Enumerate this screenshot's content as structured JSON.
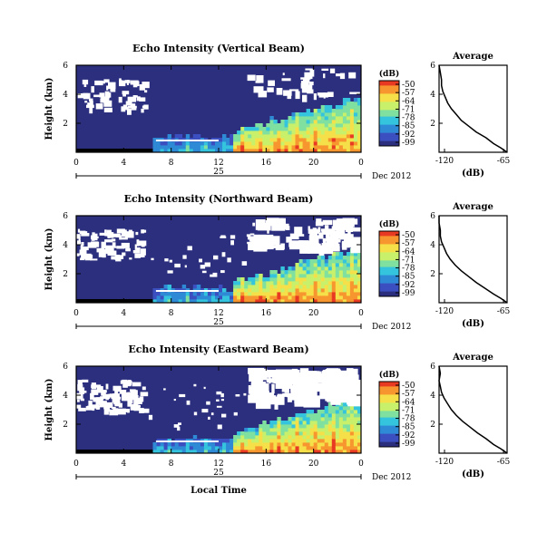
{
  "chart_data": [
    {
      "type": "heatmap",
      "title": "Echo Intensity (Vertical Beam)",
      "ylabel": "Height (km)",
      "ylim": [
        0,
        6
      ],
      "yticks": [
        "2",
        "4",
        "6"
      ],
      "xticks": [
        "0",
        "4",
        "8",
        "12",
        "16",
        "20",
        "0"
      ],
      "date_tick": "25",
      "date_label": "Dec 2012",
      "colorbar": {
        "label": "(dB)",
        "ticks": [
          "-50",
          "-57",
          "-64",
          "-71",
          "-78",
          "-85",
          "-92",
          "-99"
        ]
      },
      "average": {
        "title": "Average",
        "xlabel": "(dB)",
        "xticks": [
          "-120",
          "-65"
        ],
        "yticks": [
          "2",
          "4",
          "6"
        ],
        "x": [
          -65,
          -70,
          -76,
          -82,
          -90,
          -96,
          -102,
          -106,
          -110,
          -113,
          -115,
          -117,
          -118,
          -118,
          -119,
          -120
        ],
        "y": [
          0.0,
          0.3,
          0.6,
          1.0,
          1.4,
          1.8,
          2.2,
          2.6,
          3.0,
          3.4,
          3.8,
          4.2,
          4.6,
          5.0,
          5.5,
          6.0
        ]
      }
    },
    {
      "type": "heatmap",
      "title": "Echo Intensity (Northward Beam)",
      "ylabel": "Height (km)",
      "ylim": [
        0,
        6
      ],
      "yticks": [
        "2",
        "4",
        "6"
      ],
      "xticks": [
        "0",
        "4",
        "8",
        "12",
        "16",
        "20",
        "0"
      ],
      "date_tick": "25",
      "date_label": "Dec 2012",
      "colorbar": {
        "label": "(dB)",
        "ticks": [
          "-50",
          "-57",
          "-64",
          "-71",
          "-78",
          "-85",
          "-92",
          "-99"
        ]
      },
      "average": {
        "title": "Average",
        "xlabel": "(dB)",
        "xticks": [
          "-120",
          "-65"
        ],
        "yticks": [
          "2",
          "4",
          "6"
        ],
        "x": [
          -65,
          -70,
          -76,
          -83,
          -90,
          -96,
          -102,
          -107,
          -111,
          -114,
          -116,
          -118,
          -119,
          -119,
          -120,
          -120
        ],
        "y": [
          0.0,
          0.3,
          0.6,
          1.0,
          1.4,
          1.8,
          2.2,
          2.6,
          3.0,
          3.4,
          3.8,
          4.2,
          4.6,
          5.0,
          5.5,
          6.0
        ]
      }
    },
    {
      "type": "heatmap",
      "title": "Echo Intensity (Eastward Beam)",
      "ylabel": "Height (km)",
      "ylim": [
        0,
        6
      ],
      "yticks": [
        "2",
        "4",
        "6"
      ],
      "xticks": [
        "0",
        "4",
        "8",
        "12",
        "16",
        "20",
        "0"
      ],
      "date_tick": "25",
      "date_label": "Dec 2012",
      "xlabel": "Local Time",
      "colorbar": {
        "label": "(dB)",
        "ticks": [
          "-50",
          "-57",
          "-64",
          "-71",
          "-78",
          "-85",
          "-92",
          "-99"
        ]
      },
      "average": {
        "title": "Average",
        "xlabel": "(dB)",
        "xticks": [
          "-120",
          "-65"
        ],
        "yticks": [
          "2",
          "4",
          "6"
        ],
        "x": [
          -65,
          -70,
          -76,
          -82,
          -89,
          -95,
          -101,
          -106,
          -110,
          -113,
          -116,
          -118,
          -119,
          -120,
          -119,
          -120
        ],
        "y": [
          0.0,
          0.3,
          0.6,
          1.0,
          1.4,
          1.8,
          2.2,
          2.6,
          3.0,
          3.4,
          3.8,
          4.2,
          4.6,
          5.0,
          5.5,
          6.0
        ]
      }
    }
  ],
  "colors": {
    "background_echo": "#2b2f7e",
    "no_data": "#ffffff",
    "colormap": [
      "#2b2f7e",
      "#3b4fc0",
      "#2f8ad6",
      "#35c4dd",
      "#7fe0a0",
      "#c8f06a",
      "#f6e04a",
      "#f7962e",
      "#e83a22"
    ]
  }
}
